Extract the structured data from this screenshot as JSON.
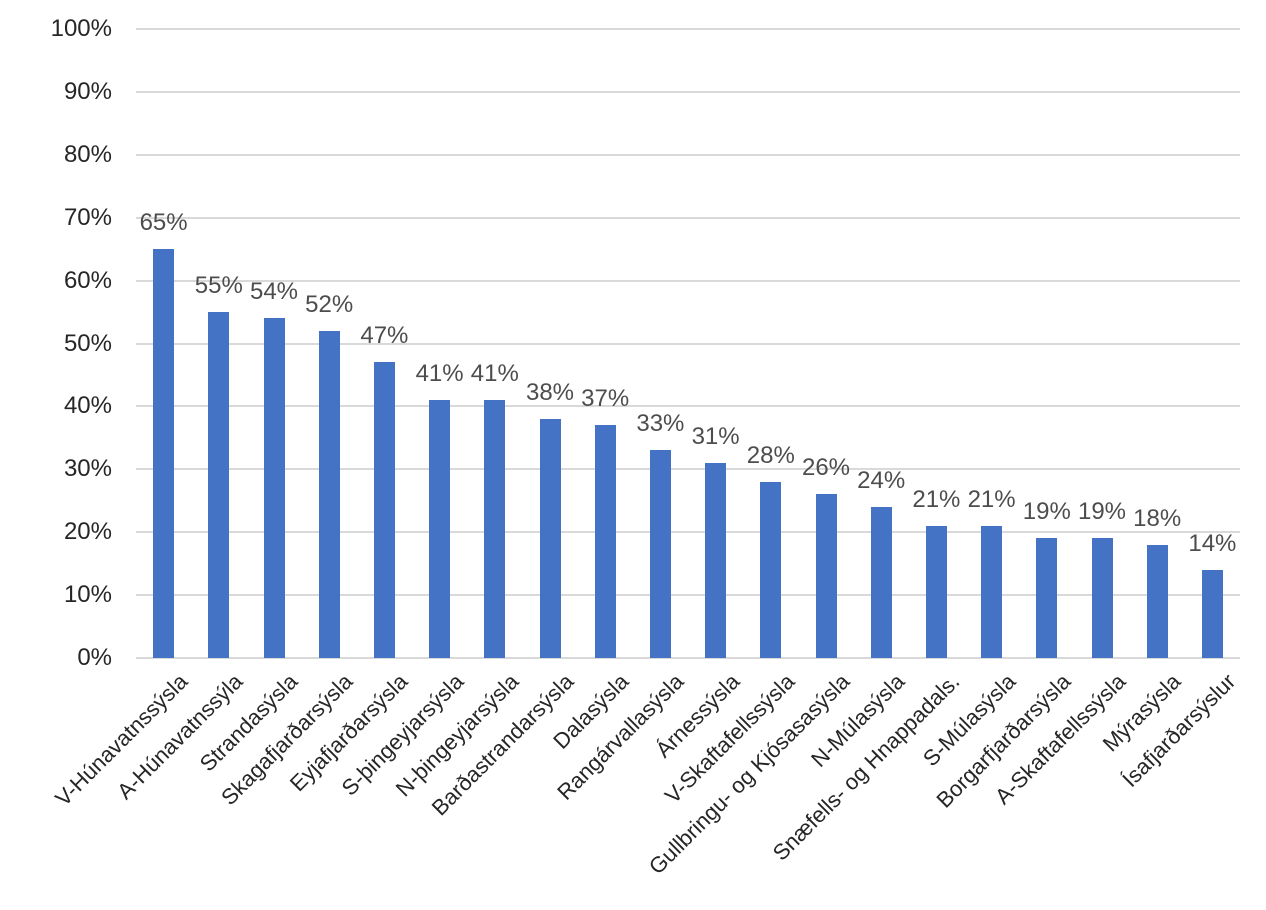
{
  "chart_data": {
    "type": "bar",
    "title": "",
    "xlabel": "",
    "ylabel": "",
    "categories": [
      "V-Húnavatnssýsla",
      "A-Húnavatnssýla",
      "Strandasýsla",
      "Skagafjarðarsýsla",
      "Eyjafjarðarsýsla",
      "S-þingeyjarsýsla",
      "N-þingeyjarsýsla",
      "Barðastrandarsýsla",
      "Dalasýsla",
      "Rangárvallasýsla",
      "Árnessýsla",
      "V-Skaftafellssýsla",
      "Gullbringu- og Kjósasasýsla",
      "N-Múlasýsla",
      "Snæfells- og Hnappadals.",
      "S-Múlasýsla",
      "Borgarfjarðarsýsla",
      "A-Skaftafellssýsla",
      "Mýrasýsla",
      "Ísafjarðarsýslur"
    ],
    "values": [
      65,
      55,
      54,
      52,
      47,
      41,
      41,
      38,
      37,
      33,
      31,
      28,
      26,
      24,
      21,
      21,
      19,
      19,
      18,
      14
    ],
    "bar_labels": [
      "65%",
      "55%",
      "54%",
      "52%",
      "47%",
      "41%",
      "41%",
      "38%",
      "37%",
      "33%",
      "31%",
      "28%",
      "26%",
      "24%",
      "21%",
      "21%",
      "19%",
      "19%",
      "18%",
      "14%"
    ],
    "ylim": [
      0,
      100
    ],
    "y_tick_step": 10,
    "y_tick_labels": [
      "0%",
      "10%",
      "20%",
      "30%",
      "40%",
      "50%",
      "60%",
      "70%",
      "80%",
      "90%",
      "100%"
    ],
    "grid": true,
    "legend_position": "none",
    "colors": {
      "bar": "#4472C4",
      "gridline": "#D9D9D9",
      "axis_text": "#262626",
      "data_label_text": "#4d4d4d",
      "background": "#FFFFFF"
    }
  }
}
